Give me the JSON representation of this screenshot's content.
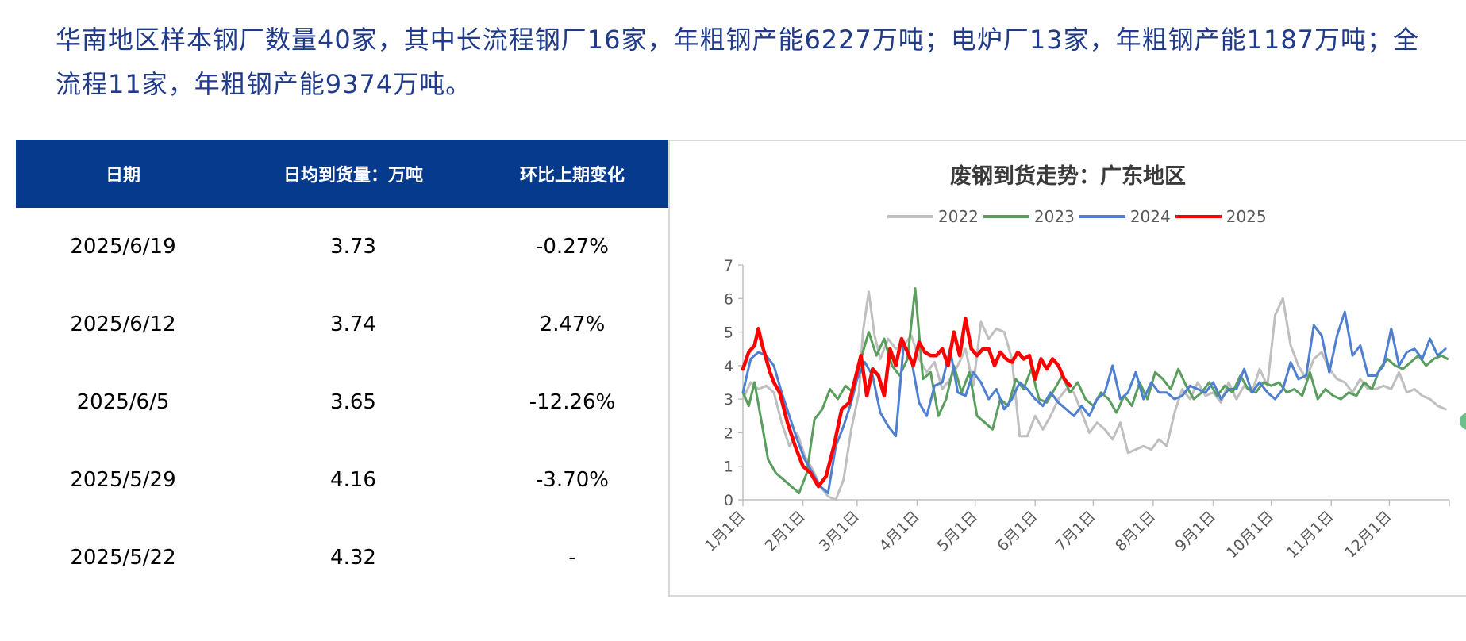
{
  "intro_text": "华南地区样本钢厂数量40家，其中长流程钢厂16家，年粗钢产能6227万吨；电炉厂13家，年粗钢产能1187万吨；全流程11家，年粗钢产能9374万吨。",
  "table": {
    "headers": [
      "日期",
      "日均到货量：万吨",
      "环比上期变化"
    ],
    "rows": [
      [
        "2025/6/19",
        "3.73",
        "-0.27%"
      ],
      [
        "2025/6/12",
        "3.74",
        "2.47%"
      ],
      [
        "2025/6/5",
        "3.65",
        "-12.26%"
      ],
      [
        "2025/5/29",
        "4.16",
        "-3.70%"
      ],
      [
        "2025/5/22",
        "4.32",
        "-"
      ]
    ]
  },
  "chart_data": {
    "type": "line",
    "title": "废钢到货走势：广东地区",
    "x_tick_labels": [
      "1月1日",
      "2月1日",
      "3月1日",
      "4月1日",
      "5月1日",
      "6月1日",
      "7月1日",
      "8月1日",
      "9月1日",
      "10月1日",
      "11月1日",
      "12月1日"
    ],
    "y_tick_labels": [
      "0",
      "1",
      "2",
      "3",
      "4",
      "5",
      "6",
      "7"
    ],
    "ylim": [
      0,
      7
    ],
    "x_unit": "day_of_year",
    "xlim": [
      1,
      366
    ],
    "legend_position": "top",
    "grid": false,
    "series": [
      {
        "name": "2022",
        "color": "#bfbfbf",
        "width": 3,
        "x": [
          1,
          5,
          9,
          13,
          17,
          21,
          25,
          29,
          33,
          37,
          41,
          45,
          49,
          53,
          57,
          61,
          63,
          66,
          69,
          72,
          76,
          80,
          84,
          88,
          92,
          96,
          100,
          104,
          108,
          112,
          116,
          120,
          124,
          128,
          132,
          136,
          140,
          144,
          148,
          152,
          156,
          160,
          164,
          168,
          172,
          176,
          180,
          184,
          188,
          192,
          196,
          200,
          204,
          208,
          212,
          216,
          220,
          224,
          228,
          232,
          236,
          240,
          244,
          248,
          252,
          256,
          260,
          264,
          268,
          272,
          276,
          280,
          284,
          288,
          292,
          296,
          300,
          304,
          308,
          312,
          316,
          320,
          324,
          328,
          332,
          336,
          340,
          344,
          348,
          352,
          356,
          360,
          364
        ],
        "y": [
          3.0,
          3.5,
          3.3,
          3.4,
          3.2,
          2.3,
          1.6,
          2.0,
          1.3,
          0.9,
          0.4,
          0.1,
          0.0,
          0.6,
          2.1,
          3.2,
          5.0,
          6.2,
          4.9,
          4.2,
          4.8,
          4.5,
          4.6,
          4.9,
          4.2,
          3.8,
          4.1,
          3.3,
          3.6,
          4.0,
          4.5,
          3.4,
          5.3,
          4.8,
          5.1,
          5.0,
          4.2,
          1.9,
          1.9,
          2.5,
          2.1,
          2.5,
          3.0,
          3.3,
          3.2,
          2.6,
          2.0,
          2.3,
          2.1,
          1.8,
          2.3,
          1.4,
          1.5,
          1.6,
          1.5,
          1.8,
          1.6,
          2.6,
          3.3,
          3.0,
          3.5,
          3.1,
          3.2,
          2.9,
          3.5,
          3.0,
          3.4,
          3.2,
          3.9,
          3.4,
          5.5,
          6.0,
          4.6,
          4.0,
          3.6,
          4.2,
          4.4,
          3.9,
          3.6,
          3.5,
          3.2,
          3.6,
          3.3,
          3.3,
          3.4,
          3.3,
          3.8,
          3.2,
          3.3,
          3.1,
          3.0,
          2.8,
          2.7
        ]
      },
      {
        "name": "2023",
        "color": "#5a9e5e",
        "width": 3,
        "x": [
          1,
          4,
          7,
          11,
          14,
          18,
          22,
          26,
          30,
          34,
          38,
          42,
          46,
          50,
          54,
          58,
          62,
          66,
          70,
          74,
          78,
          82,
          86,
          90,
          94,
          98,
          102,
          106,
          110,
          114,
          118,
          122,
          126,
          130,
          134,
          138,
          142,
          146,
          150,
          154,
          158,
          162,
          166,
          170,
          174,
          178,
          182,
          186,
          190,
          194,
          198,
          202,
          206,
          210,
          214,
          218,
          222,
          226,
          230,
          234,
          238,
          242,
          246,
          250,
          254,
          258,
          262,
          266,
          270,
          274,
          278,
          282,
          286,
          290,
          294,
          298,
          302,
          306,
          310,
          314,
          318,
          322,
          326,
          330,
          334,
          338,
          342,
          346,
          350,
          354,
          358,
          362,
          365
        ],
        "y": [
          3.2,
          2.8,
          3.5,
          2.2,
          1.2,
          0.8,
          0.6,
          0.4,
          0.2,
          0.8,
          2.4,
          2.7,
          3.3,
          3.0,
          3.4,
          3.2,
          4.2,
          5.0,
          4.3,
          4.8,
          4.0,
          3.7,
          4.2,
          6.3,
          3.6,
          3.8,
          2.5,
          3.0,
          4.0,
          3.2,
          3.8,
          2.5,
          2.3,
          2.1,
          3.0,
          2.8,
          3.6,
          3.3,
          3.9,
          3.0,
          2.9,
          3.3,
          3.7,
          3.2,
          3.5,
          3.0,
          2.8,
          3.2,
          3.0,
          2.6,
          3.1,
          2.8,
          3.5,
          3.0,
          3.8,
          3.6,
          3.3,
          3.9,
          3.4,
          3.0,
          3.2,
          3.5,
          3.1,
          3.4,
          3.2,
          3.7,
          3.3,
          3.2,
          3.5,
          3.4,
          3.5,
          3.2,
          3.3,
          3.1,
          3.8,
          3.0,
          3.3,
          3.1,
          3.0,
          3.2,
          3.1,
          3.5,
          3.3,
          3.9,
          4.2,
          4.0,
          3.9,
          4.1,
          4.3,
          4.0,
          4.2,
          4.3,
          4.2
        ]
      },
      {
        "name": "2024",
        "color": "#4f7fd0",
        "width": 3,
        "x": [
          1,
          5,
          9,
          13,
          17,
          21,
          25,
          29,
          33,
          37,
          41,
          45,
          49,
          53,
          57,
          60,
          64,
          68,
          72,
          76,
          80,
          84,
          88,
          92,
          96,
          100,
          104,
          108,
          112,
          116,
          120,
          124,
          128,
          132,
          136,
          140,
          144,
          148,
          152,
          156,
          160,
          164,
          168,
          172,
          176,
          180,
          184,
          188,
          192,
          196,
          200,
          204,
          208,
          212,
          216,
          220,
          224,
          228,
          232,
          236,
          240,
          244,
          248,
          252,
          256,
          260,
          264,
          268,
          272,
          276,
          280,
          284,
          288,
          292,
          296,
          300,
          304,
          308,
          312,
          316,
          320,
          324,
          328,
          332,
          336,
          340,
          344,
          348,
          352,
          356,
          360,
          364
        ],
        "y": [
          3.2,
          4.2,
          4.4,
          4.3,
          4.0,
          3.2,
          2.5,
          1.8,
          1.2,
          0.8,
          0.4,
          0.2,
          1.6,
          2.2,
          2.9,
          3.6,
          4.1,
          3.7,
          2.6,
          2.2,
          1.9,
          4.6,
          4.2,
          2.9,
          2.5,
          3.4,
          3.5,
          4.5,
          3.2,
          3.1,
          3.8,
          3.5,
          3.0,
          3.3,
          2.7,
          3.0,
          3.5,
          3.3,
          3.0,
          2.8,
          3.2,
          2.9,
          2.7,
          2.5,
          2.8,
          2.5,
          3.0,
          3.2,
          4.0,
          3.0,
          3.2,
          3.8,
          3.0,
          3.5,
          3.2,
          3.2,
          3.0,
          3.1,
          3.4,
          3.3,
          3.2,
          3.5,
          3.0,
          3.3,
          3.3,
          3.9,
          3.2,
          3.5,
          3.2,
          3.0,
          3.3,
          4.1,
          3.6,
          3.7,
          5.2,
          4.9,
          3.8,
          4.9,
          5.6,
          4.3,
          4.6,
          3.7,
          3.7,
          4.0,
          5.1,
          4.0,
          4.4,
          4.5,
          4.2,
          4.8,
          4.3,
          4.5
        ]
      },
      {
        "name": "2025",
        "color": "#ff0000",
        "width": 4.5,
        "x": [
          1,
          4,
          7,
          9,
          11,
          13,
          15,
          17,
          20,
          24,
          28,
          32,
          36,
          40,
          44,
          48,
          52,
          56,
          59,
          62,
          65,
          68,
          71,
          74,
          77,
          80,
          83,
          86,
          89,
          92,
          95,
          98,
          101,
          104,
          107,
          110,
          113,
          116,
          119,
          122,
          125,
          128,
          131,
          134,
          137,
          140,
          143,
          146,
          149,
          152,
          155,
          158,
          161,
          164,
          167,
          170
        ],
        "y": [
          3.9,
          4.4,
          4.6,
          5.1,
          4.6,
          4.2,
          3.8,
          3.5,
          3.2,
          2.3,
          1.6,
          1.0,
          0.8,
          0.4,
          0.7,
          1.6,
          2.7,
          2.9,
          3.6,
          4.3,
          3.1,
          3.9,
          3.7,
          3.1,
          4.5,
          4.0,
          4.8,
          4.4,
          4.0,
          4.7,
          4.4,
          4.3,
          4.3,
          4.5,
          4.0,
          5.0,
          4.3,
          5.4,
          4.5,
          4.3,
          4.5,
          4.5,
          4.0,
          4.4,
          4.2,
          4.1,
          4.4,
          4.2,
          4.3,
          3.6,
          4.2,
          3.9,
          4.2,
          4.0,
          3.6,
          3.4
        ]
      }
    ]
  },
  "decor": {
    "table_header_color": "#063a8c",
    "intro_color": "#1f3b8a",
    "edge_marker_color": "#6cc08a"
  }
}
